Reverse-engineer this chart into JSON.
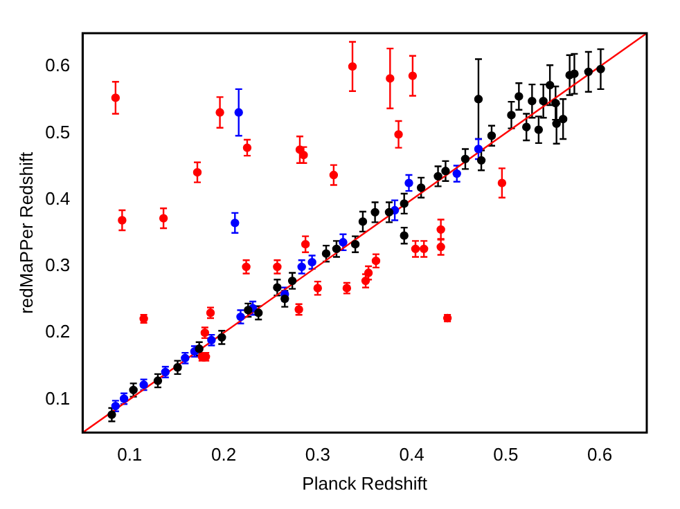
{
  "chart_data": {
    "type": "scatter",
    "xlabel": "Planck Redshift",
    "ylabel": "redMaPPer Redshift",
    "xlim": [
      0.05,
      0.65
    ],
    "ylim": [
      0.05,
      0.65
    ],
    "xticks": [
      0.1,
      0.2,
      0.3,
      0.4,
      0.5,
      0.6
    ],
    "yticks": [
      0.1,
      0.2,
      0.3,
      0.4,
      0.5,
      0.6
    ],
    "grid": false,
    "legend": false,
    "marker": "circle",
    "series": [
      {
        "color": "#000000",
        "x": [
          0.081,
          0.104,
          0.13,
          0.151,
          0.174,
          0.198,
          0.226,
          0.237,
          0.257,
          0.265,
          0.273,
          0.309,
          0.32,
          0.34,
          0.348,
          0.361,
          0.376,
          0.392,
          0.392,
          0.41,
          0.428,
          0.436,
          0.457,
          0.471,
          0.474,
          0.485,
          0.506,
          0.514,
          0.522,
          0.528,
          0.535,
          0.54,
          0.547,
          0.553,
          0.554,
          0.561,
          0.568,
          0.573,
          0.588,
          0.601
        ],
        "values": [
          0.077,
          0.114,
          0.128,
          0.148,
          0.176,
          0.193,
          0.234,
          0.23,
          0.268,
          0.251,
          0.278,
          0.319,
          0.326,
          0.333,
          0.367,
          0.381,
          0.381,
          0.394,
          0.346,
          0.418,
          0.435,
          0.443,
          0.461,
          0.551,
          0.459,
          0.496,
          0.527,
          0.555,
          0.509,
          0.548,
          0.505,
          0.548,
          0.572,
          0.545,
          0.514,
          0.521,
          0.587,
          0.589,
          0.592,
          0.596
        ],
        "errors": [
          0.01,
          0.01,
          0.01,
          0.01,
          0.01,
          0.01,
          0.01,
          0.01,
          0.012,
          0.012,
          0.012,
          0.012,
          0.012,
          0.012,
          0.015,
          0.015,
          0.015,
          0.015,
          0.012,
          0.015,
          0.015,
          0.015,
          0.015,
          0.06,
          0.015,
          0.015,
          0.02,
          0.02,
          0.02,
          0.025,
          0.02,
          0.025,
          0.03,
          0.025,
          0.03,
          0.03,
          0.03,
          0.03,
          0.03,
          0.03
        ]
      },
      {
        "color": "#0000ff",
        "x": [
          0.085,
          0.094,
          0.115,
          0.138,
          0.159,
          0.169,
          0.187,
          0.212,
          0.216,
          0.218,
          0.231,
          0.265,
          0.283,
          0.294,
          0.327,
          0.382,
          0.397,
          0.448,
          0.471
        ],
        "values": [
          0.09,
          0.101,
          0.122,
          0.141,
          0.162,
          0.172,
          0.189,
          0.365,
          0.531,
          0.224,
          0.237,
          0.258,
          0.299,
          0.306,
          0.336,
          0.384,
          0.425,
          0.439,
          0.476
        ],
        "errors": [
          0.008,
          0.008,
          0.008,
          0.008,
          0.008,
          0.008,
          0.008,
          0.015,
          0.035,
          0.01,
          0.01,
          0.01,
          0.01,
          0.01,
          0.012,
          0.015,
          0.012,
          0.012,
          0.015
        ]
      },
      {
        "color": "#ff0000",
        "x": [
          0.085,
          0.092,
          0.115,
          0.136,
          0.172,
          0.177,
          0.18,
          0.181,
          0.186,
          0.196,
          0.224,
          0.225,
          0.257,
          0.28,
          0.281,
          0.285,
          0.287,
          0.3,
          0.317,
          0.331,
          0.337,
          0.351,
          0.354,
          0.362,
          0.377,
          0.386,
          0.401,
          0.404,
          0.413,
          0.431,
          0.431,
          0.438,
          0.496
        ],
        "values": [
          0.553,
          0.369,
          0.221,
          0.372,
          0.441,
          0.164,
          0.2,
          0.164,
          0.23,
          0.531,
          0.299,
          0.478,
          0.299,
          0.235,
          0.475,
          0.467,
          0.333,
          0.267,
          0.437,
          0.267,
          0.6,
          0.278,
          0.29,
          0.308,
          0.582,
          0.498,
          0.586,
          0.326,
          0.326,
          0.355,
          0.329,
          0.222,
          0.425
        ],
        "errors": [
          0.024,
          0.015,
          0.006,
          0.015,
          0.015,
          0.006,
          0.008,
          0.006,
          0.008,
          0.023,
          0.01,
          0.012,
          0.01,
          0.008,
          0.02,
          0.012,
          0.012,
          0.01,
          0.015,
          0.008,
          0.037,
          0.01,
          0.01,
          0.01,
          0.045,
          0.02,
          0.03,
          0.012,
          0.012,
          0.015,
          0.012,
          0.005,
          0.022
        ]
      },
      {
        "type": "line",
        "color": "#ff0000",
        "line_style": "solid",
        "marker": "none",
        "x": [
          0.05,
          0.65
        ],
        "values": [
          0.05,
          0.65
        ]
      }
    ]
  }
}
